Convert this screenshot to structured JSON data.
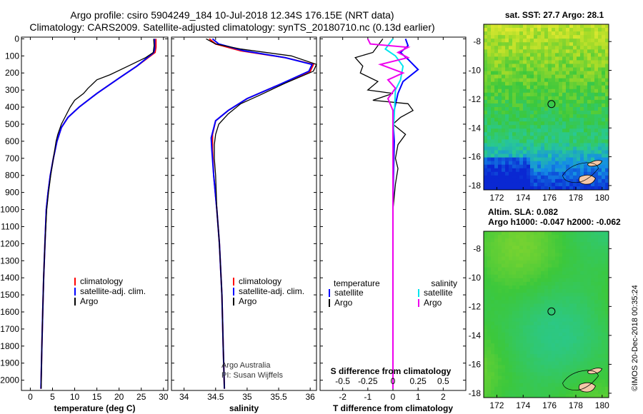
{
  "header": {
    "title_line1": "Argo profile: csiro 5904249_184 10-Jul-2018 12.34S 176.15E (NRT data)",
    "title_line2": "Climatology: CARS2009. Satellite-adjusted climatology: synTS_20180710.nc (0.13d earlier)"
  },
  "colors": {
    "climatology": "#ff0000",
    "satellite": "#0000ff",
    "argo": "#000000",
    "sal_satellite": "#00e5ee",
    "sal_argo": "#ee00ee"
  },
  "depth_ticks": [
    "0",
    "100",
    "200",
    "300",
    "400",
    "500",
    "600",
    "700",
    "800",
    "900",
    "1000",
    "1100",
    "1200",
    "1300",
    "1400",
    "1500",
    "1600",
    "1700",
    "1800",
    "1900",
    "2000"
  ],
  "chart_data": [
    {
      "type": "line",
      "title": "",
      "xlabel": "temperature (deg C)",
      "ylabel": "",
      "xlim": [
        -2,
        31
      ],
      "ylim": [
        2060,
        -10
      ],
      "xticks": [
        "0",
        "5",
        "10",
        "15",
        "20",
        "25",
        "30"
      ],
      "xtick_values": [
        0,
        5,
        10,
        15,
        20,
        25,
        30
      ],
      "legend": [
        "climatology",
        "satellite-adj. clim.",
        "Argo"
      ],
      "series": [
        {
          "name": "climatology",
          "color_key": "climatology",
          "points": [
            [
              28.3,
              0
            ],
            [
              28.3,
              50
            ],
            [
              28.1,
              80
            ],
            [
              24,
              160
            ],
            [
              20,
              230
            ],
            [
              15,
              320
            ],
            [
              11,
              400
            ],
            [
              8.5,
              460
            ],
            [
              7,
              520
            ],
            [
              6,
              600
            ],
            [
              5.2,
              700
            ],
            [
              4.5,
              800
            ],
            [
              4,
              900
            ],
            [
              3.6,
              1000
            ],
            [
              3.3,
              1200
            ],
            [
              3,
              1400
            ],
            [
              2.8,
              1600
            ],
            [
              2.6,
              1800
            ],
            [
              2.4,
              2050
            ]
          ]
        },
        {
          "name": "satellite-adj. clim.",
          "color_key": "satellite",
          "points": [
            [
              28,
              0
            ],
            [
              28,
              60
            ],
            [
              27.8,
              80
            ],
            [
              24,
              160
            ],
            [
              20,
              230
            ],
            [
              15,
              320
            ],
            [
              11,
              400
            ],
            [
              8.5,
              460
            ],
            [
              7,
              520
            ],
            [
              6,
              600
            ],
            [
              5.2,
              700
            ],
            [
              4.5,
              800
            ],
            [
              4,
              900
            ],
            [
              3.6,
              1000
            ],
            [
              3.3,
              1200
            ],
            [
              3,
              1400
            ],
            [
              2.8,
              1600
            ],
            [
              2.6,
              1800
            ],
            [
              2.4,
              2050
            ]
          ]
        },
        {
          "name": "Argo",
          "color_key": "argo",
          "points": [
            [
              27.8,
              0
            ],
            [
              27.9,
              40
            ],
            [
              27.7,
              80
            ],
            [
              26,
              110
            ],
            [
              22,
              160
            ],
            [
              18,
              210
            ],
            [
              15,
              240
            ],
            [
              13,
              290
            ],
            [
              12,
              320
            ],
            [
              10,
              360
            ],
            [
              9,
              400
            ],
            [
              8,
              450
            ],
            [
              7,
              500
            ],
            [
              6.2,
              560
            ],
            [
              5.8,
              600
            ],
            [
              5.2,
              700
            ],
            [
              4.6,
              800
            ],
            [
              4.1,
              900
            ],
            [
              3.7,
              1000
            ],
            [
              3.3,
              1200
            ],
            [
              3,
              1400
            ],
            [
              2.8,
              1600
            ],
            [
              2.6,
              1800
            ],
            [
              2.45,
              2050
            ]
          ]
        }
      ]
    },
    {
      "type": "line",
      "title": "",
      "xlabel": "salinity",
      "ylabel": "",
      "xlim": [
        33.8,
        36.1
      ],
      "ylim": [
        2060,
        -10
      ],
      "xticks": [
        "34",
        "34.5",
        "35",
        "35.5",
        "36"
      ],
      "xtick_values": [
        34,
        34.5,
        35,
        35.5,
        36
      ],
      "legend": [
        "climatology",
        "satellite-adj. clim.",
        "Argo"
      ],
      "annotation_line1": "Argo Australia",
      "annotation_line2": "PI: Susan Wijffels",
      "series": [
        {
          "name": "climatology",
          "color_key": "climatology",
          "points": [
            [
              34.4,
              0
            ],
            [
              34.5,
              30
            ],
            [
              34.9,
              70
            ],
            [
              35.6,
              110
            ],
            [
              36.05,
              150
            ],
            [
              36,
              190
            ],
            [
              35.5,
              270
            ],
            [
              35,
              350
            ],
            [
              34.7,
              420
            ],
            [
              34.5,
              480
            ],
            [
              34.45,
              560
            ],
            [
              34.45,
              650
            ],
            [
              34.47,
              800
            ],
            [
              34.52,
              1000
            ],
            [
              34.56,
              1200
            ],
            [
              34.6,
              1500
            ],
            [
              34.62,
              1800
            ],
            [
              34.64,
              2050
            ]
          ]
        },
        {
          "name": "satellite-adj. clim.",
          "color_key": "satellite",
          "points": [
            [
              34.45,
              0
            ],
            [
              34.55,
              30
            ],
            [
              34.95,
              70
            ],
            [
              35.6,
              110
            ],
            [
              36.03,
              150
            ],
            [
              35.98,
              190
            ],
            [
              35.5,
              270
            ],
            [
              35,
              350
            ],
            [
              34.7,
              420
            ],
            [
              34.5,
              480
            ],
            [
              34.43,
              580
            ],
            [
              34.44,
              650
            ],
            [
              34.47,
              800
            ],
            [
              34.52,
              1000
            ],
            [
              34.56,
              1200
            ],
            [
              34.6,
              1500
            ],
            [
              34.62,
              1800
            ],
            [
              34.64,
              2050
            ]
          ]
        },
        {
          "name": "Argo",
          "color_key": "argo",
          "points": [
            [
              34.35,
              0
            ],
            [
              34.5,
              30
            ],
            [
              34.9,
              60
            ],
            [
              35.7,
              100
            ],
            [
              36.1,
              150
            ],
            [
              36.05,
              190
            ],
            [
              35.6,
              260
            ],
            [
              35.2,
              330
            ],
            [
              34.9,
              380
            ],
            [
              34.7,
              440
            ],
            [
              34.55,
              500
            ],
            [
              34.5,
              560
            ],
            [
              34.48,
              620
            ],
            [
              34.48,
              700
            ],
            [
              34.5,
              800
            ],
            [
              34.52,
              1000
            ],
            [
              34.56,
              1200
            ],
            [
              34.6,
              1500
            ],
            [
              34.62,
              1800
            ],
            [
              34.64,
              2050
            ]
          ]
        }
      ]
    },
    {
      "type": "line",
      "title": "",
      "xlabel": "T difference from climatology",
      "ylabel": "",
      "xlim": [
        -2.9,
        2.9
      ],
      "ylim": [
        2060,
        -10
      ],
      "xticks": [
        "-2",
        "-1",
        "0",
        "1",
        "2"
      ],
      "xtick_values": [
        -2,
        -1,
        0,
        1,
        2
      ],
      "secondary_xlabel": "S difference from climatology",
      "secondary_xticks": [
        "-0.5",
        "-0.25",
        "0",
        "0.25",
        "0.5"
      ],
      "secondary_xtick_values": [
        -0.5,
        -0.25,
        0,
        0.25,
        0.5
      ],
      "secondary_scale": 4,
      "legend_temperature_title": "temperature",
      "legend_salinity_title": "salinity",
      "legend_left": [
        "satellite",
        "Argo"
      ],
      "legend_right": [
        "satellite",
        "Argo"
      ],
      "series": [
        {
          "name": "temperature satellite",
          "color_key": "satellite",
          "points": [
            [
              0.5,
              0
            ],
            [
              0.6,
              40
            ],
            [
              0.3,
              80
            ],
            [
              0.6,
              120
            ],
            [
              1,
              180
            ],
            [
              0.4,
              250
            ],
            [
              0.2,
              320
            ],
            [
              0,
              450
            ],
            [
              0.05,
              600
            ],
            [
              0.02,
              800
            ],
            [
              0,
              1000
            ],
            [
              0,
              1400
            ],
            [
              0,
              2050
            ]
          ]
        },
        {
          "name": "temperature Argo",
          "color_key": "argo",
          "points": [
            [
              -0.4,
              0
            ],
            [
              -0.8,
              80
            ],
            [
              -1.5,
              110
            ],
            [
              -1.2,
              160
            ],
            [
              -1.3,
              200
            ],
            [
              -0.6,
              250
            ],
            [
              -1,
              300
            ],
            [
              0,
              320
            ],
            [
              -0.8,
              360
            ],
            [
              0.6,
              380
            ],
            [
              0.8,
              420
            ],
            [
              0.3,
              460
            ],
            [
              0,
              500
            ],
            [
              0.5,
              560
            ],
            [
              0.2,
              620
            ],
            [
              0.1,
              700
            ],
            [
              0.2,
              760
            ],
            [
              0.1,
              850
            ],
            [
              0,
              1000
            ],
            [
              0,
              1400
            ],
            [
              0,
              2050
            ]
          ]
        },
        {
          "name": "salinity satellite",
          "color_key": "sal_satellite",
          "points": [
            [
              0,
              0
            ],
            [
              -0.3,
              60
            ],
            [
              0.1,
              100
            ],
            [
              0.4,
              160
            ],
            [
              0.3,
              240
            ],
            [
              0.1,
              300
            ],
            [
              0.05,
              450
            ],
            [
              0,
              600
            ],
            [
              0,
              1000
            ],
            [
              0,
              1500
            ],
            [
              0,
              2050
            ]
          ]
        },
        {
          "name": "salinity Argo",
          "color_key": "sal_argo",
          "points": [
            [
              -1,
              0
            ],
            [
              -0.9,
              30
            ],
            [
              0.6,
              50
            ],
            [
              0.2,
              80
            ],
            [
              0.6,
              110
            ],
            [
              -0.5,
              150
            ],
            [
              0.4,
              200
            ],
            [
              -0.2,
              240
            ],
            [
              0.1,
              290
            ],
            [
              -0.2,
              350
            ],
            [
              0,
              420
            ],
            [
              0,
              1000
            ],
            [
              0,
              2050
            ]
          ]
        }
      ]
    },
    {
      "type": "heatmap",
      "title": "sat. SST: 27.7 Argo: 28.1",
      "xlabel": "",
      "ylabel": "",
      "xlim": [
        171,
        180.5
      ],
      "ylim": [
        -18.3,
        -6.8
      ],
      "xticks": [
        "172",
        "174",
        "176",
        "178",
        "180"
      ],
      "xtick_values": [
        172,
        174,
        176,
        178,
        180
      ],
      "yticks": [
        "-8",
        "-10",
        "-12",
        "-14",
        "-16",
        "-18"
      ],
      "ytick_values": [
        -8,
        -10,
        -12,
        -14,
        -16,
        -18
      ],
      "marker": {
        "lon": 176.15,
        "lat": -12.34
      }
    },
    {
      "type": "heatmap",
      "title_line1": "Altim. SLA: 0.082",
      "title_line2": "Argo h1000: -0.047 h2000: -0.062",
      "xlabel": "",
      "ylabel": "",
      "xlim": [
        171,
        180.5
      ],
      "ylim": [
        -18.3,
        -6.8
      ],
      "xticks": [
        "172",
        "174",
        "176",
        "178",
        "180"
      ],
      "xtick_values": [
        172,
        174,
        176,
        178,
        180
      ],
      "yticks": [
        "-8",
        "-10",
        "-12",
        "-14",
        "-16",
        "-18"
      ],
      "ytick_values": [
        -8,
        -10,
        -12,
        -14,
        -16,
        -18
      ],
      "marker": {
        "lon": 176.15,
        "lat": -12.34
      }
    }
  ],
  "watermark": "©IMOS 20-Dec-2018 00:35:24"
}
